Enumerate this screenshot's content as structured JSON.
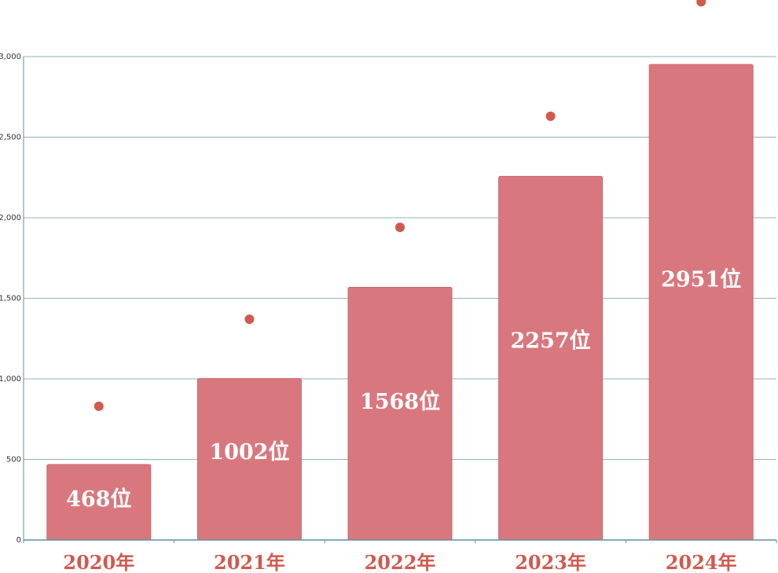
{
  "chart_data": {
    "type": "bar",
    "categories": [
      "2020年",
      "2021年",
      "2022年",
      "2023年",
      "2024年"
    ],
    "values": [
      468,
      1002,
      1568,
      2257,
      2951
    ],
    "data_labels": [
      "468位",
      "1002位",
      "1568位",
      "2257位",
      "2951位"
    ],
    "marker_values": [
      830,
      1370,
      1940,
      2630,
      3340
    ],
    "y_ticks": [
      "0",
      "500",
      "1,000",
      "1,500",
      "2,000",
      "2,500",
      "3,000"
    ],
    "ylim": [
      0,
      3000
    ],
    "grid": true,
    "colors": {
      "bar": "#d8787e",
      "bar_stroke": "#c9666d",
      "marker": "#d05a4e",
      "category_text": "#d05a4e",
      "grid": "#8fb3c2",
      "axis": "#5f8fa3"
    }
  }
}
